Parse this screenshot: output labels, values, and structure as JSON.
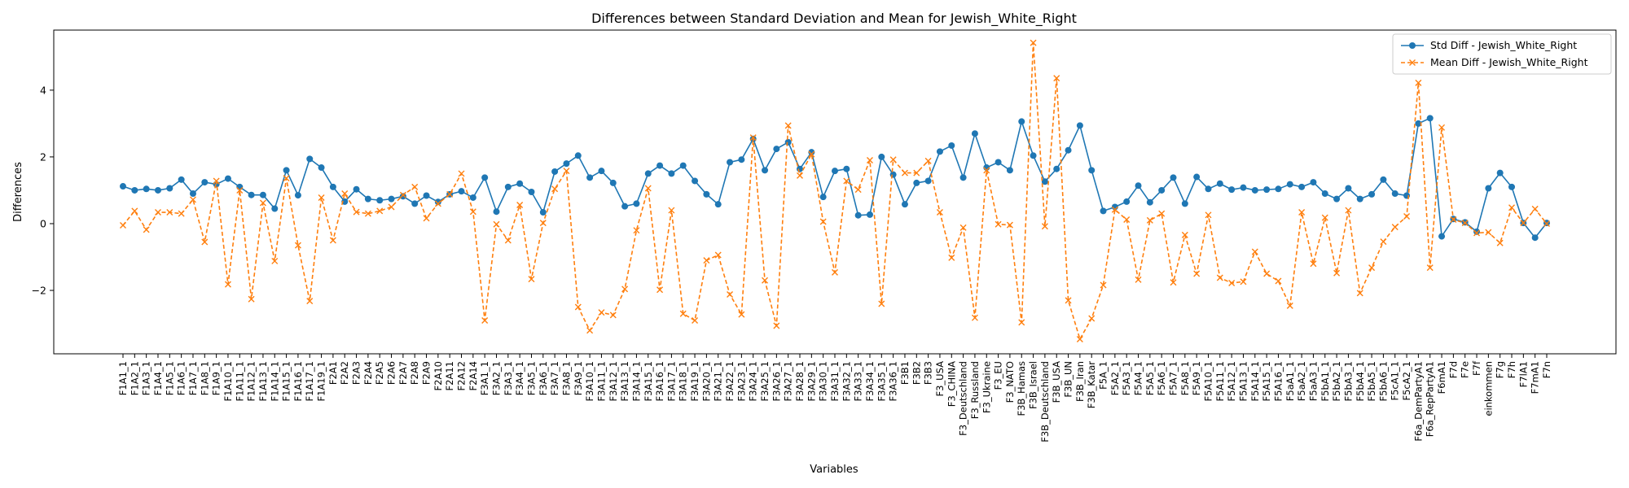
{
  "chart_data": {
    "type": "line",
    "title": "Differences between Standard Deviation and Mean for Jewish_White_Right",
    "xlabel": "Variables",
    "ylabel": "Differences",
    "ylim": [
      -3.9,
      5.8
    ],
    "yticks": [
      -2,
      0,
      2,
      4
    ],
    "legend_position": "top-right",
    "grid": false,
    "categories": [
      "F1A1_1",
      "F1A2_1",
      "F1A3_1",
      "F1A4_1",
      "F1A5_1",
      "F1A6_1",
      "F1A7_1",
      "F1A8_1",
      "F1A9_1",
      "F1A10_1",
      "F1A11_1",
      "F1A12_1",
      "F1A13_1",
      "F1A14_1",
      "F1A15_1",
      "F1A16_1",
      "F1A17_1",
      "F1A19_1",
      "F2A1",
      "F2A2",
      "F2A3",
      "F2A4",
      "F2A5",
      "F2A6",
      "F2A7",
      "F2A8",
      "F2A9",
      "F2A10",
      "F2A11",
      "F2A12",
      "F2A14",
      "F3A1_1",
      "F3A2_1",
      "F3A3_1",
      "F3A4_1",
      "F3A5_1",
      "F3A6_1",
      "F3A7_1",
      "F3A8_1",
      "F3A9_1",
      "F3A10_1",
      "F3A11_1",
      "F3A12_1",
      "F3A13_1",
      "F3A14_1",
      "F3A15_1",
      "F3A16_1",
      "F3A17_1",
      "F3A18_1",
      "F3A19_1",
      "F3A20_1",
      "F3A21_1",
      "F3A22_1",
      "F3A23_1",
      "F3A24_1",
      "F3A25_1",
      "F3A26_1",
      "F3A27_1",
      "F3A28_1",
      "F3A29_1",
      "F3A30_1",
      "F3A31_1",
      "F3A32_1",
      "F3A33_1",
      "F3A34_1",
      "F3A35_1",
      "F3A36_1",
      "F3B1",
      "F3B2",
      "F3B3",
      "F3_USA",
      "F3_CHINA",
      "F3_Deutschland",
      "F3_Russland",
      "F3_Ukraine",
      "F3_EU",
      "F3_NATO",
      "F3B_Hamas",
      "F3B_Israel",
      "F3B_Deutschland",
      "F3B_USA",
      "F3B_UN",
      "F3B_Iran",
      "F3B_Katar",
      "F5A_1",
      "F5A2_1",
      "F5A3_1",
      "F5A4_1",
      "F5A5_1",
      "F5A6_1",
      "F5A7_1",
      "F5A8_1",
      "F5A9_1",
      "F5A10_1",
      "F5A11_1",
      "F5A12_1",
      "F5A13_1",
      "F5A14_1",
      "F5A15_1",
      "F5A16_1",
      "F5aA1_1",
      "F5aA2_1",
      "F5aA3_1",
      "F5bA1_1",
      "F5bA2_1",
      "F5bA3_1",
      "F5bA4_1",
      "F5bA5_1",
      "F5bA6_1",
      "F5cA1_1",
      "F5cA2_1",
      "F6a_DemPartyA1",
      "F6a_RepPartyA1",
      "F6mA1",
      "F7d",
      "F7e",
      "F7f",
      "einkommen",
      "F7g",
      "F7h",
      "F7lA1",
      "F7mA1",
      "F7n"
    ],
    "series": [
      {
        "name": "Std Diff - Jewish_White_Right",
        "color": "#1f77b4",
        "marker": "circle",
        "linestyle": "solid",
        "values": [
          1.12,
          1.0,
          1.04,
          1.0,
          1.06,
          1.32,
          0.9,
          1.24,
          1.18,
          1.35,
          1.1,
          0.86,
          0.86,
          0.45,
          1.6,
          0.85,
          1.94,
          1.68,
          1.1,
          0.66,
          1.03,
          0.74,
          0.7,
          0.74,
          0.82,
          0.6,
          0.84,
          0.65,
          0.88,
          0.97,
          0.78,
          1.38,
          0.36,
          1.1,
          1.2,
          0.95,
          0.34,
          1.56,
          1.8,
          2.04,
          1.38,
          1.58,
          1.22,
          0.52,
          0.6,
          1.5,
          1.74,
          1.5,
          1.74,
          1.28,
          0.88,
          0.58,
          1.84,
          1.92,
          2.54,
          1.6,
          2.24,
          2.44,
          1.64,
          2.14,
          0.8,
          1.58,
          1.64,
          0.25,
          0.27,
          2.0,
          1.47,
          0.58,
          1.22,
          1.28,
          2.16,
          2.34,
          1.38,
          2.7,
          1.68,
          1.84,
          1.6,
          3.06,
          2.04,
          1.26,
          1.64,
          2.2,
          2.94,
          1.6,
          0.38,
          0.5,
          0.66,
          1.14,
          0.64,
          1.0,
          1.38,
          0.6,
          1.4,
          1.04,
          1.2,
          1.02,
          1.08,
          1.0,
          1.02,
          1.04,
          1.18,
          1.1,
          1.24,
          0.9,
          0.74,
          1.06,
          0.74,
          0.88,
          1.32,
          0.9,
          0.84,
          3.0,
          3.16,
          -0.38,
          0.14,
          0.04,
          -0.24,
          1.06,
          1.52,
          1.1,
          0.02,
          -0.42,
          0.02
        ]
      },
      {
        "name": "Mean Diff - Jewish_White_Right",
        "color": "#ff7f0e",
        "marker": "x",
        "linestyle": "dashed",
        "values": [
          -0.05,
          0.38,
          -0.18,
          0.34,
          0.34,
          0.3,
          0.72,
          -0.55,
          1.28,
          -1.82,
          1.0,
          -2.26,
          0.62,
          -1.12,
          1.36,
          -0.65,
          -2.32,
          0.78,
          -0.5,
          0.9,
          0.35,
          0.3,
          0.38,
          0.5,
          0.86,
          1.1,
          0.16,
          0.6,
          0.88,
          1.5,
          0.36,
          -2.9,
          -0.02,
          -0.5,
          0.56,
          -1.66,
          0.02,
          1.04,
          1.58,
          -2.5,
          -3.2,
          -2.66,
          -2.74,
          -1.96,
          -0.2,
          1.06,
          -1.98,
          0.4,
          -2.7,
          -2.9,
          -1.1,
          -0.94,
          -2.12,
          -2.72,
          2.58,
          -1.7,
          -3.06,
          2.94,
          1.44,
          2.08,
          0.06,
          -1.46,
          1.28,
          1.02,
          1.9,
          -2.4,
          1.92,
          1.52,
          1.52,
          1.88,
          0.34,
          -1.02,
          -0.12,
          -2.82,
          1.6,
          -0.02,
          -0.04,
          -2.96,
          5.42,
          -0.08,
          4.36,
          -2.3,
          -3.46,
          -2.84,
          -1.84,
          0.42,
          0.12,
          -1.68,
          0.1,
          0.3,
          -1.76,
          -0.34,
          -1.5,
          0.26,
          -1.62,
          -1.78,
          -1.74,
          -0.84,
          -1.5,
          -1.72,
          -2.46,
          0.34,
          -1.2,
          0.18,
          -1.48,
          0.4,
          -2.08,
          -1.32,
          -0.54,
          -0.1,
          0.22,
          4.22,
          -1.32,
          2.88,
          0.12,
          0.02,
          -0.28,
          -0.26,
          -0.58,
          0.48,
          0.02,
          0.44,
          0.0
        ]
      }
    ]
  }
}
